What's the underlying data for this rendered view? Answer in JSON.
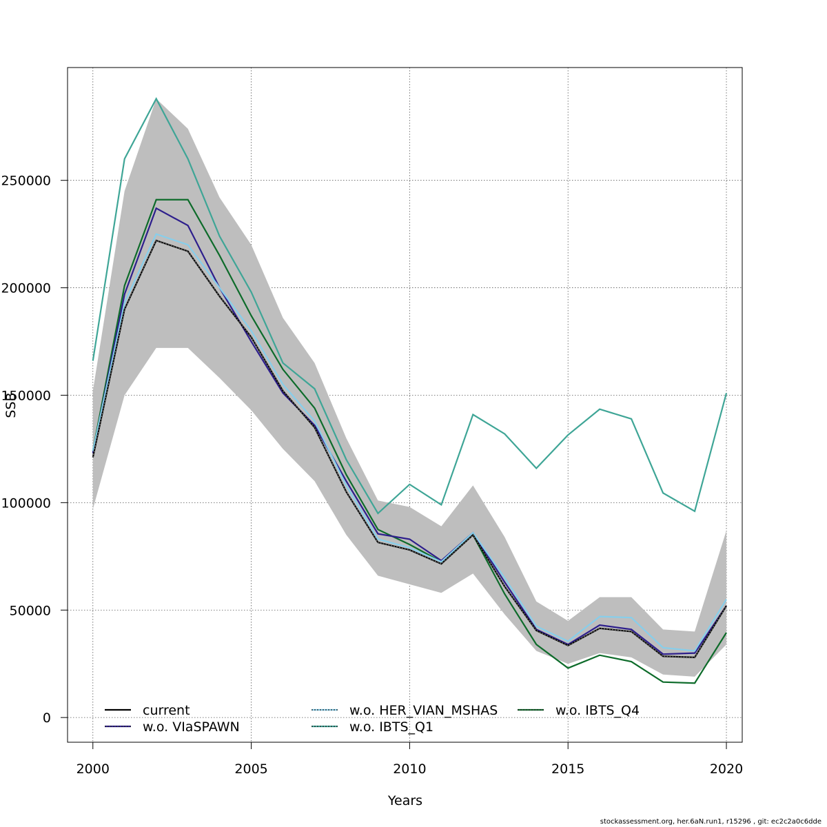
{
  "chart_data": {
    "type": "line",
    "title": "",
    "xlabel": "Years",
    "ylabel": "SSB",
    "xlim": [
      1999.2,
      2020.5
    ],
    "ylim": [
      -11500,
      302500
    ],
    "grid": true,
    "legend_position": "bottom-left",
    "x": [
      2000,
      2001,
      2002,
      2003,
      2004,
      2005,
      2006,
      2007,
      2008,
      2009,
      2010,
      2011,
      2012,
      2013,
      2014,
      2015,
      2016,
      2017,
      2018,
      2019,
      2020
    ],
    "x_ticks": [
      2000,
      2005,
      2010,
      2015,
      2020
    ],
    "y_ticks": [
      0,
      50000,
      100000,
      150000,
      200000,
      250000
    ],
    "confidence_band": {
      "lower": [
        97000,
        150000,
        172000,
        172000,
        158000,
        143000,
        125000,
        110000,
        85000,
        66000,
        62000,
        58000,
        67000,
        48000,
        31000,
        25000,
        30000,
        28000,
        20000,
        19000,
        34000
      ],
      "upper": [
        152000,
        245000,
        288000,
        274000,
        242000,
        220000,
        186000,
        165000,
        130000,
        101000,
        98000,
        89000,
        108000,
        84000,
        54000,
        45000,
        56000,
        56000,
        41000,
        40000,
        87000
      ],
      "color": "#bebebe"
    },
    "series": [
      {
        "name": "current",
        "color": "#000000",
        "dash": "",
        "values": [
          121000,
          190000,
          222000,
          217000,
          196000,
          177000,
          152000,
          135000,
          105000,
          81500,
          78000,
          71500,
          85000,
          61000,
          40500,
          33500,
          41500,
          40000,
          28500,
          28000,
          52000
        ]
      },
      {
        "name": "w.o. VIaSPAWN",
        "color": "#2d1e8c",
        "dash": "",
        "values": [
          123000,
          197000,
          237000,
          229000,
          200000,
          175000,
          151000,
          136000,
          110000,
          85500,
          83000,
          73000,
          86000,
          63000,
          41000,
          34000,
          43000,
          41000,
          29500,
          30000,
          52000
        ]
      },
      {
        "name": "w.o. HER_VIAN_MSHAS",
        "color": "#87ceeb",
        "dash": "",
        "values": [
          124000,
          193000,
          225000,
          220000,
          200000,
          180000,
          155000,
          138000,
          108000,
          83000,
          79000,
          72500,
          86000,
          65000,
          42500,
          35500,
          47000,
          46500,
          32500,
          31000,
          55000
        ]
      },
      {
        "name": "w.o. IBTS_Q1",
        "color": "#3ea596",
        "dash": "",
        "values": [
          166000,
          260000,
          288000,
          260000,
          224000,
          198000,
          165000,
          153000,
          120000,
          95000,
          108500,
          99000,
          141000,
          132000,
          116000,
          131500,
          143500,
          139000,
          104500,
          96000,
          151000
        ]
      },
      {
        "name": "w.o. IBTS_Q4",
        "color": "#0d6b2a",
        "dash": "",
        "values": [
          124000,
          201000,
          241000,
          241000,
          215000,
          187000,
          162000,
          144000,
          113000,
          87500,
          80500,
          72500,
          85000,
          57500,
          34000,
          23000,
          29000,
          26000,
          16500,
          16000,
          39500
        ]
      }
    ],
    "legend": {
      "entries": [
        "current",
        "w.o. HER_VIAN_MSHAS",
        "w.o. IBTS_Q4",
        "w.o. VIaSPAWN",
        "w.o. IBTS_Q1"
      ],
      "colors": [
        "#000000",
        "#87ceeb",
        "#0d6b2a",
        "#2d1e8c",
        "#3ea596"
      ]
    }
  },
  "footer_text": "stockassessment.org, her.6aN.run1, r15296 , git: ec2c2a0c6dde"
}
